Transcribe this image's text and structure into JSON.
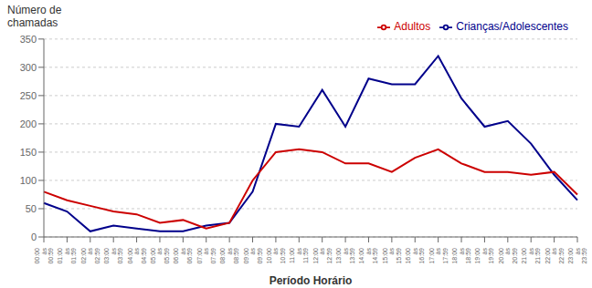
{
  "chart_data": {
    "type": "line",
    "xlabel": "Período Horário",
    "ylabel": "Número de\nchamadas",
    "categories": [
      "00:00\nàs\n00:59",
      "01:00\nàs\n01:59",
      "02:00\nàs\n02:59",
      "03:00\nàs\n03:59",
      "04:00\nàs\n04:59",
      "05:00\nàs\n05:59",
      "06:00\nàs\n06:59",
      "07:00\nàs\n07:59",
      "08:00\nàs\n08:59",
      "09:00\nàs\n09:59",
      "10:00\nàs\n10:59",
      "11:00\nàs\n11:59",
      "12:00\nàs\n12:59",
      "13:00\nàs\n13:59",
      "14:00\nàs\n14:59",
      "15:00\nàs\n15:59",
      "16:00\nàs\n16:59",
      "17:00\nàs\n17:59",
      "18:00\nàs\n18:59",
      "19:00\nàs\n19:59",
      "20:00\nàs\n20:59",
      "21:00\nàs\n21:59",
      "22:00\nàs\n22:59",
      "23:00\nàs\n23:59"
    ],
    "series": [
      {
        "name": "Crianças/Adolescentes",
        "color": "#00008B",
        "values": [
          60,
          45,
          10,
          20,
          15,
          10,
          10,
          20,
          25,
          80,
          200,
          195,
          260,
          195,
          280,
          270,
          270,
          320,
          245,
          195,
          205,
          165,
          110,
          65
        ]
      },
      {
        "name": "Adultos",
        "color": "#CC0000",
        "values": [
          80,
          65,
          55,
          45,
          40,
          25,
          30,
          15,
          25,
          100,
          150,
          155,
          150,
          130,
          130,
          115,
          140,
          155,
          130,
          115,
          115,
          110,
          115,
          75
        ]
      }
    ],
    "ylim": [
      0,
      350
    ],
    "yticks": [
      0,
      50,
      100,
      150,
      200,
      250,
      300,
      350
    ],
    "grid": true,
    "legend": "upper right"
  }
}
